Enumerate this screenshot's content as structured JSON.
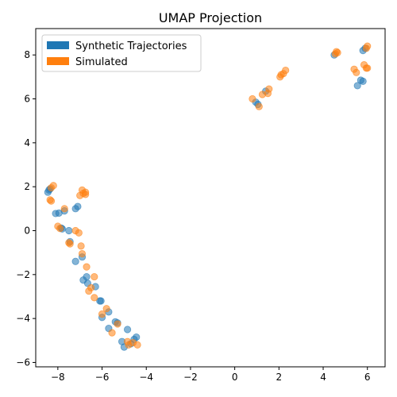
{
  "chart_data": {
    "type": "scatter",
    "title": "UMAP Projection",
    "xlabel": "",
    "ylabel": "",
    "xlim": [
      -9.0,
      6.8
    ],
    "ylim": [
      -6.2,
      9.2
    ],
    "xticks": [
      -8,
      -6,
      -4,
      -2,
      0,
      2,
      4,
      6
    ],
    "yticks": [
      -6,
      -4,
      -2,
      0,
      2,
      4,
      6,
      8
    ],
    "grid": false,
    "legend_position": "upper-left",
    "series": [
      {
        "name": "Synthetic Trajectories",
        "color": "#1f77b4",
        "points": [
          [
            -8.45,
            1.75
          ],
          [
            -8.35,
            1.9
          ],
          [
            -8.4,
            1.85
          ],
          [
            -8.1,
            0.78
          ],
          [
            -7.95,
            0.8
          ],
          [
            -7.85,
            0.12
          ],
          [
            -7.8,
            0.08
          ],
          [
            -7.5,
            0.0
          ],
          [
            -7.45,
            -0.5
          ],
          [
            -7.2,
            1.0
          ],
          [
            -7.1,
            1.1
          ],
          [
            -7.2,
            -1.4
          ],
          [
            -6.9,
            -1.2
          ],
          [
            -6.85,
            -2.25
          ],
          [
            -6.7,
            -2.1
          ],
          [
            -6.65,
            -2.4
          ],
          [
            -6.3,
            -2.55
          ],
          [
            -6.1,
            -3.2
          ],
          [
            -6.05,
            -3.2
          ],
          [
            -6.0,
            -3.95
          ],
          [
            -5.7,
            -3.7
          ],
          [
            -5.7,
            -4.45
          ],
          [
            -5.4,
            -4.15
          ],
          [
            -5.3,
            -4.2
          ],
          [
            -5.1,
            -5.05
          ],
          [
            -5.0,
            -5.3
          ],
          [
            -4.85,
            -4.5
          ],
          [
            -4.7,
            -5.15
          ],
          [
            -4.55,
            -4.95
          ],
          [
            -4.45,
            -4.85
          ],
          [
            0.95,
            5.85
          ],
          [
            1.05,
            5.75
          ],
          [
            1.4,
            6.35
          ],
          [
            4.5,
            8.0
          ],
          [
            5.55,
            6.6
          ],
          [
            5.7,
            6.85
          ],
          [
            5.8,
            8.2
          ],
          [
            5.9,
            8.3
          ],
          [
            5.8,
            6.8
          ],
          [
            -7.7,
            0.9
          ]
        ]
      },
      {
        "name": "Simulated",
        "color": "#ff7f0e",
        "points": [
          [
            -8.3,
            1.95
          ],
          [
            -8.2,
            2.05
          ],
          [
            -8.35,
            1.4
          ],
          [
            -8.3,
            1.35
          ],
          [
            -8.0,
            0.2
          ],
          [
            -7.9,
            0.1
          ],
          [
            -7.7,
            1.0
          ],
          [
            -7.5,
            -0.55
          ],
          [
            -7.45,
            -0.6
          ],
          [
            -7.2,
            0.0
          ],
          [
            -7.05,
            -0.1
          ],
          [
            -7.0,
            1.6
          ],
          [
            -6.9,
            1.85
          ],
          [
            -6.85,
            1.7
          ],
          [
            -6.95,
            -0.7
          ],
          [
            -6.9,
            -1.05
          ],
          [
            -6.7,
            -1.65
          ],
          [
            -6.6,
            -2.75
          ],
          [
            -6.5,
            -2.6
          ],
          [
            -6.35,
            -2.1
          ],
          [
            -6.35,
            -3.05
          ],
          [
            -6.0,
            -3.8
          ],
          [
            -5.8,
            -3.55
          ],
          [
            -5.55,
            -4.65
          ],
          [
            -5.3,
            -4.25
          ],
          [
            -4.85,
            -5.05
          ],
          [
            -4.8,
            -5.2
          ],
          [
            -4.6,
            -5.1
          ],
          [
            -4.4,
            -5.2
          ],
          [
            -6.75,
            1.65
          ],
          [
            0.8,
            6.0
          ],
          [
            1.1,
            5.65
          ],
          [
            1.25,
            6.2
          ],
          [
            1.5,
            6.25
          ],
          [
            1.55,
            6.45
          ],
          [
            2.05,
            7.0
          ],
          [
            2.1,
            7.1
          ],
          [
            2.2,
            7.15
          ],
          [
            2.3,
            7.3
          ],
          [
            4.6,
            8.15
          ],
          [
            4.65,
            8.1
          ],
          [
            5.4,
            7.35
          ],
          [
            5.5,
            7.2
          ],
          [
            5.85,
            7.55
          ],
          [
            5.95,
            7.4
          ],
          [
            6.0,
            7.4
          ],
          [
            5.95,
            8.3
          ],
          [
            6.0,
            8.4
          ],
          [
            -6.75,
            1.75
          ],
          [
            4.55,
            8.05
          ]
        ]
      }
    ]
  }
}
